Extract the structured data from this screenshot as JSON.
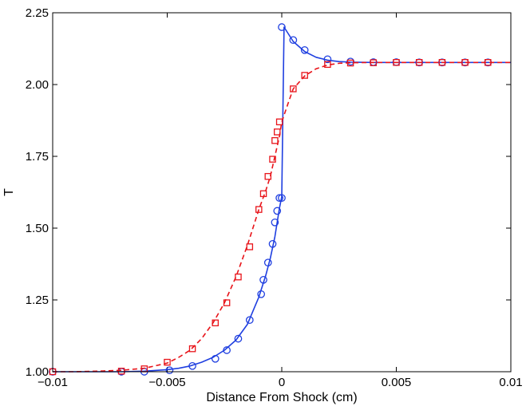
{
  "chart_data": {
    "type": "line",
    "title": "",
    "xlabel": "Distance From Shock (cm)",
    "ylabel": "T",
    "xlim": [
      -0.01,
      0.01
    ],
    "ylim": [
      1.0,
      2.25
    ],
    "xticks": [
      -0.01,
      -0.005,
      0,
      0.005,
      0.01
    ],
    "xtick_labels": [
      "−0.01",
      "−0.005",
      "0",
      "0.005",
      "0.01"
    ],
    "yticks": [
      1.0,
      1.25,
      1.5,
      1.75,
      2.0,
      2.25
    ],
    "ytick_labels": [
      "1.00",
      "1.25",
      "1.50",
      "1.75",
      "2.00",
      "2.25"
    ],
    "grid": false,
    "legend": "none",
    "series": [
      {
        "color": "#1f3fe0",
        "line_style": "solid",
        "marker": "circle",
        "line": {
          "x": [
            -0.01,
            -0.009,
            -0.008,
            -0.007,
            -0.006,
            -0.005,
            -0.0045,
            -0.004,
            -0.0035,
            -0.003,
            -0.0025,
            -0.002,
            -0.0015,
            -0.001,
            -0.0007,
            -0.0005,
            -0.0003,
            -0.0002,
            -0.0001,
            0.0,
            0.0001,
            0.0003,
            0.0005,
            0.001,
            0.0015,
            0.002,
            0.0025,
            0.003,
            0.004,
            0.005,
            0.006,
            0.007,
            0.008,
            0.009,
            0.01
          ],
          "y": [
            1.0,
            1.0,
            1.0,
            1.0,
            1.002,
            1.007,
            1.012,
            1.02,
            1.033,
            1.05,
            1.075,
            1.11,
            1.165,
            1.26,
            1.335,
            1.395,
            1.47,
            1.52,
            1.57,
            1.61,
            2.2,
            2.175,
            2.15,
            2.115,
            2.095,
            2.085,
            2.08,
            2.078,
            2.077,
            2.077,
            2.077,
            2.077,
            2.077,
            2.077,
            2.077
          ]
        },
        "points": {
          "x": [
            -0.01,
            -0.007,
            -0.006,
            -0.0049,
            -0.0039,
            -0.0029,
            -0.0024,
            -0.0019,
            -0.0014,
            -0.0009,
            -0.0008,
            -0.0006,
            -0.0004,
            -0.0003,
            -0.0002,
            -0.0001,
            0.0,
            0.0,
            0.0005,
            0.001,
            0.002,
            0.003,
            0.004,
            0.005,
            0.006,
            0.007,
            0.008,
            0.009
          ],
          "y": [
            1.0,
            1.0,
            1.0,
            1.005,
            1.02,
            1.045,
            1.075,
            1.115,
            1.18,
            1.27,
            1.32,
            1.38,
            1.445,
            1.52,
            1.56,
            1.605,
            1.605,
            2.2,
            2.155,
            2.12,
            2.088,
            2.08,
            2.078,
            2.078,
            2.077,
            2.077,
            2.077,
            2.077
          ]
        }
      },
      {
        "color": "#e8141a",
        "line_style": "dashed",
        "marker": "square",
        "line": {
          "x": [
            -0.01,
            -0.009,
            -0.008,
            -0.007,
            -0.006,
            -0.005,
            -0.0045,
            -0.004,
            -0.0035,
            -0.003,
            -0.0025,
            -0.002,
            -0.0015,
            -0.001,
            -0.0007,
            -0.0005,
            -0.0003,
            -0.0001,
            0.0,
            0.0003,
            0.0005,
            0.001,
            0.0015,
            0.002,
            0.0025,
            0.003,
            0.004,
            0.005,
            0.006,
            0.007,
            0.008,
            0.009,
            0.01
          ],
          "y": [
            1.0,
            1.0,
            1.002,
            1.005,
            1.012,
            1.03,
            1.05,
            1.075,
            1.115,
            1.17,
            1.24,
            1.33,
            1.44,
            1.565,
            1.63,
            1.68,
            1.75,
            1.82,
            1.87,
            1.94,
            1.985,
            2.03,
            2.055,
            2.068,
            2.074,
            2.076,
            2.077,
            2.077,
            2.077,
            2.077,
            2.077,
            2.077,
            2.077
          ]
        },
        "points": {
          "x": [
            -0.01,
            -0.007,
            -0.006,
            -0.005,
            -0.0039,
            -0.0029,
            -0.0024,
            -0.0019,
            -0.0014,
            -0.001,
            -0.0008,
            -0.0006,
            -0.0004,
            -0.0003,
            -0.0002,
            -0.0001,
            0.0005,
            0.001,
            0.002,
            0.003,
            0.004,
            0.005,
            0.006,
            0.007,
            0.008,
            0.009
          ],
          "y": [
            1.0,
            1.002,
            1.01,
            1.033,
            1.08,
            1.17,
            1.24,
            1.33,
            1.435,
            1.565,
            1.62,
            1.68,
            1.74,
            1.805,
            1.835,
            1.87,
            1.985,
            2.032,
            2.07,
            2.075,
            2.076,
            2.077,
            2.077,
            2.077,
            2.077,
            2.077
          ]
        }
      }
    ]
  }
}
